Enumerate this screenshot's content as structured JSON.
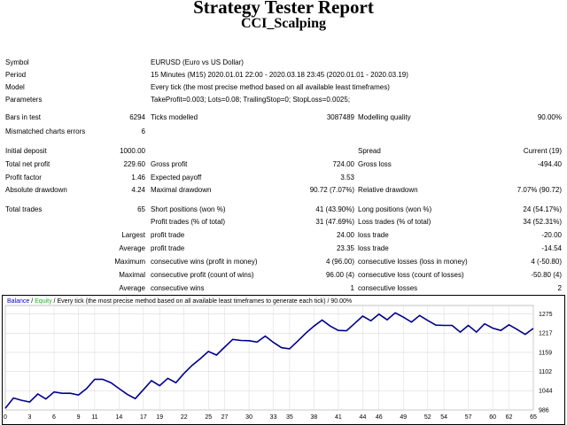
{
  "header": {
    "title": "Strategy Tester Report",
    "subtitle": "CCI_Scalping"
  },
  "info": {
    "symbol_label": "Symbol",
    "symbol_value": "EURUSD (Euro vs US Dollar)",
    "period_label": "Period",
    "period_value": "15 Minutes (M15) 2020.01.01 22:00 - 2020.03.18 23:45 (2020.01.01 - 2020.03.19)",
    "model_label": "Model",
    "model_value": "Every tick (the most precise method based on all available least timeframes)",
    "params_label": "Parameters",
    "params_value": "TakeProfit=0.003; Lots=0.08; TrailingStop=0; StopLoss=0.0025;"
  },
  "stats": {
    "bars_label": "Bars in test",
    "bars_value": "6294",
    "ticks_label": "Ticks modelled",
    "ticks_value": "3087489",
    "quality_label": "Modelling quality",
    "quality_value": "90.00%",
    "mismatch_label": "Mismatched charts errors",
    "mismatch_value": "6",
    "deposit_label": "Initial deposit",
    "deposit_value": "1000.00",
    "spread_label": "Spread",
    "spread_value": "Current (19)",
    "netprofit_label": "Total net profit",
    "netprofit_value": "229.60",
    "grossprofit_label": "Gross profit",
    "grossprofit_value": "724.00",
    "grossloss_label": "Gross loss",
    "grossloss_value": "-494.40",
    "pf_label": "Profit factor",
    "pf_value": "1.46",
    "payoff_label": "Expected payoff",
    "payoff_value": "3.53",
    "absdd_label": "Absolute drawdown",
    "absdd_value": "4.24",
    "maxdd_label": "Maximal drawdown",
    "maxdd_value": "90.72 (7.07%)",
    "reldd_label": "Relative drawdown",
    "reldd_value": "7.07% (90.72)",
    "trades_label": "Total trades",
    "trades_value": "65",
    "short_label": "Short positions (won %)",
    "short_value": "41 (43.90%)",
    "long_label": "Long positions (won %)",
    "long_value": "24 (54.17%)",
    "profittr_label": "Profit trades (% of total)",
    "profittr_value": "31 (47.69%)",
    "losstr_label": "Loss trades (% of total)",
    "losstr_value": "34 (52.31%)",
    "largest_label": "Largest",
    "lpt_label": "profit trade",
    "lpt_value": "24.00",
    "llt_label": "loss trade",
    "llt_value": "-20.00",
    "average_label": "Average",
    "apt_label": "profit trade",
    "apt_value": "23.35",
    "alt_label": "loss trade",
    "alt_value": "-14.54",
    "maximum_label": "Maximum",
    "mcw_label": "consecutive wins (profit in money)",
    "mcw_value": "4 (96.00)",
    "mcl_label": "consecutive losses (loss in money)",
    "mcl_value": "4 (-50.80)",
    "maximal_label": "Maximal",
    "mcp_label": "consecutive profit (count of wins)",
    "mcp_value": "96.00 (4)",
    "mcll_label": "consecutive loss (count of losses)",
    "mcll_value": "-50.80 (4)",
    "average2_label": "Average",
    "acw_label": "consecutive wins",
    "acw_value": "1",
    "acl_label": "consecutive losses",
    "acl_value": "2"
  },
  "chart_data": {
    "type": "line",
    "legend": {
      "balance": "Balance",
      "sep1": " / ",
      "equity": "Equity",
      "sep2": " / ",
      "text": "Every tick (the most precise method based on all available least timeframes to generate each tick) / 90.00%"
    },
    "x_ticks": [
      "0",
      "3",
      "6",
      "9",
      "11",
      "14",
      "17",
      "19",
      "22",
      "25",
      "27",
      "30",
      "33",
      "35",
      "38",
      "41",
      "44",
      "46",
      "49",
      "52",
      "54",
      "57",
      "60",
      "62",
      "65"
    ],
    "y_ticks": [
      "1275",
      "1217",
      "1159",
      "1102",
      "1044",
      "986"
    ],
    "ylim": [
      986,
      1300
    ],
    "xlim": [
      0,
      65
    ],
    "series": [
      {
        "name": "Balance",
        "color": "#00008b",
        "x": [
          0,
          1,
          2,
          3,
          4,
          5,
          6,
          7,
          8,
          9,
          10,
          11,
          12,
          13,
          14,
          15,
          16,
          17,
          18,
          19,
          20,
          21,
          22,
          23,
          24,
          25,
          26,
          27,
          28,
          29,
          30,
          31,
          32,
          33,
          34,
          35,
          36,
          37,
          38,
          39,
          40,
          41,
          42,
          43,
          44,
          45,
          46,
          47,
          48,
          49,
          50,
          51,
          52,
          53,
          54,
          55,
          56,
          57,
          58,
          59,
          60,
          61,
          62,
          63,
          64,
          65
        ],
        "y": [
          991,
          1022,
          1015,
          1010,
          1034,
          1019,
          1040,
          1036,
          1036,
          1031,
          1050,
          1078,
          1078,
          1068,
          1050,
          1033,
          1020,
          1047,
          1074,
          1059,
          1081,
          1068,
          1096,
          1120,
          1140,
          1162,
          1151,
          1175,
          1198,
          1195,
          1194,
          1190,
          1208,
          1189,
          1173,
          1170,
          1193,
          1217,
          1238,
          1256,
          1238,
          1225,
          1224,
          1246,
          1268,
          1254,
          1274,
          1257,
          1278,
          1265,
          1250,
          1270,
          1255,
          1241,
          1240,
          1240,
          1220,
          1240,
          1220,
          1245,
          1232,
          1225,
          1242,
          1228,
          1213,
          1231
        ]
      }
    ]
  }
}
